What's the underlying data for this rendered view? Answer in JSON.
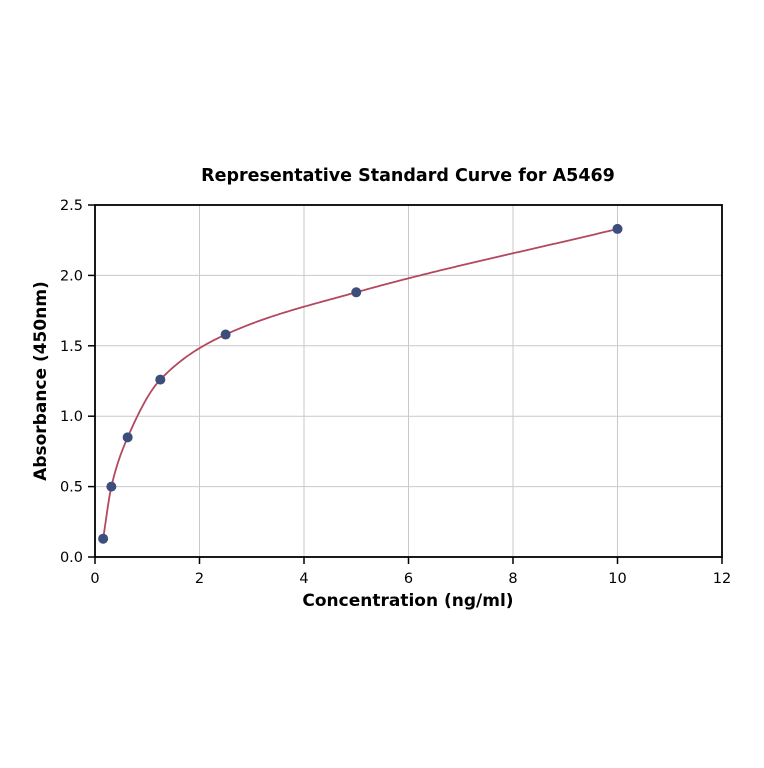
{
  "chart_data": {
    "type": "scatter",
    "title": "Representative Standard Curve for A5469",
    "xlabel": "Concentration (ng/ml)",
    "ylabel": "Absorbance (450nm)",
    "xlim": [
      0,
      12
    ],
    "ylim": [
      0,
      2.5
    ],
    "xticks": [
      0,
      2,
      4,
      6,
      8,
      10,
      12
    ],
    "xtick_labels": [
      "0",
      "2",
      "4",
      "6",
      "8",
      "10",
      "12"
    ],
    "yticks": [
      0.0,
      0.5,
      1.0,
      1.5,
      2.0,
      2.5
    ],
    "ytick_labels": [
      "0.0",
      "0.5",
      "1.0",
      "1.5",
      "2.0",
      "2.5"
    ],
    "grid": true,
    "legend_position": "none",
    "points": {
      "x": [
        0.156,
        0.313,
        0.625,
        1.25,
        2.5,
        5,
        10
      ],
      "y": [
        0.13,
        0.5,
        0.85,
        1.26,
        1.58,
        1.88,
        2.33
      ]
    },
    "fit_curve": true,
    "colors": {
      "point": "#3d4e7c",
      "line": "#b2495f",
      "grid": "#c9c9c9",
      "axis": "#000000",
      "background": "#ffffff"
    }
  }
}
